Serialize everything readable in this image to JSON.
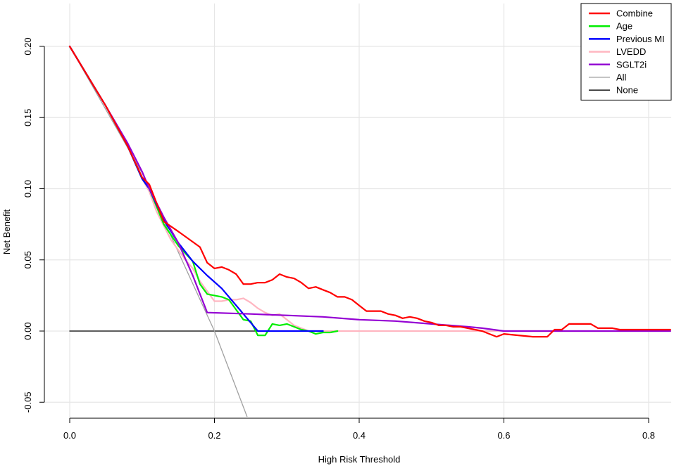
{
  "chart_data": {
    "type": "line",
    "title": "",
    "xlabel": "High Risk Threshold",
    "ylabel": "Net Benefit",
    "xlim": [
      0,
      0.83
    ],
    "ylim": [
      -0.06,
      0.2
    ],
    "x_ticks": [
      0.0,
      0.2,
      0.4,
      0.6,
      0.8
    ],
    "x_tick_labels": [
      "0.0",
      "0.2",
      "0.4",
      "0.6",
      "0.8"
    ],
    "y_ticks": [
      -0.05,
      0.0,
      0.05,
      0.1,
      0.15,
      0.2
    ],
    "y_tick_labels": [
      "-0.05",
      "0.00",
      "0.05",
      "0.10",
      "0.15",
      "0.20"
    ],
    "grid": true,
    "legend_position": "top-right",
    "series": [
      {
        "name": "Combine",
        "color": "#ff0000",
        "x": [
          0,
          0.05,
          0.08,
          0.1,
          0.11,
          0.13,
          0.15,
          0.18,
          0.19,
          0.2,
          0.21,
          0.22,
          0.23,
          0.24,
          0.25,
          0.26,
          0.27,
          0.28,
          0.29,
          0.3,
          0.31,
          0.32,
          0.33,
          0.34,
          0.35,
          0.36,
          0.37,
          0.38,
          0.39,
          0.4,
          0.41,
          0.42,
          0.43,
          0.44,
          0.45,
          0.46,
          0.47,
          0.48,
          0.49,
          0.5,
          0.51,
          0.52,
          0.53,
          0.54,
          0.55,
          0.56,
          0.57,
          0.58,
          0.59,
          0.6,
          0.62,
          0.64,
          0.66,
          0.67,
          0.68,
          0.69,
          0.7,
          0.71,
          0.72,
          0.73,
          0.74,
          0.75,
          0.76,
          0.78,
          0.8,
          0.83
        ],
        "y": [
          0.2,
          0.158,
          0.13,
          0.108,
          0.103,
          0.077,
          0.07,
          0.059,
          0.048,
          0.044,
          0.045,
          0.043,
          0.04,
          0.033,
          0.033,
          0.034,
          0.034,
          0.036,
          0.04,
          0.038,
          0.037,
          0.034,
          0.03,
          0.031,
          0.029,
          0.027,
          0.024,
          0.024,
          0.022,
          0.018,
          0.014,
          0.014,
          0.014,
          0.012,
          0.011,
          0.009,
          0.01,
          0.009,
          0.007,
          0.006,
          0.004,
          0.004,
          0.003,
          0.003,
          0.002,
          0.001,
          0.0,
          -0.002,
          -0.004,
          -0.002,
          -0.003,
          -0.004,
          -0.004,
          0.001,
          0.001,
          0.005,
          0.005,
          0.005,
          0.005,
          0.002,
          0.002,
          0.002,
          0.001,
          0.001,
          0.001,
          0.001
        ]
      },
      {
        "name": "Age",
        "color": "#00ee00",
        "x": [
          0,
          0.05,
          0.08,
          0.1,
          0.11,
          0.13,
          0.15,
          0.17,
          0.18,
          0.19,
          0.2,
          0.21,
          0.22,
          0.23,
          0.24,
          0.25,
          0.26,
          0.27,
          0.28,
          0.29,
          0.3,
          0.31,
          0.32,
          0.33,
          0.34,
          0.35,
          0.36,
          0.37
        ],
        "y": [
          0.2,
          0.158,
          0.13,
          0.107,
          0.1,
          0.075,
          0.06,
          0.049,
          0.033,
          0.026,
          0.025,
          0.024,
          0.022,
          0.015,
          0.008,
          0.007,
          -0.003,
          -0.003,
          0.005,
          0.004,
          0.005,
          0.003,
          0.001,
          0.0,
          -0.002,
          -0.001,
          -0.001,
          0.0
        ]
      },
      {
        "name": "Previous MI",
        "color": "#0000ff",
        "x": [
          0,
          0.05,
          0.08,
          0.1,
          0.11,
          0.13,
          0.15,
          0.17,
          0.19,
          0.21,
          0.23,
          0.25,
          0.26,
          0.3,
          0.35
        ],
        "y": [
          0.2,
          0.158,
          0.13,
          0.107,
          0.1,
          0.078,
          0.062,
          0.049,
          0.039,
          0.03,
          0.018,
          0.006,
          0.0,
          0.0,
          0.0
        ]
      },
      {
        "name": "LVEDD",
        "color": "#ffb6c1",
        "x": [
          0,
          0.05,
          0.08,
          0.1,
          0.11,
          0.12,
          0.14,
          0.16,
          0.17,
          0.18,
          0.19,
          0.2,
          0.21,
          0.22,
          0.23,
          0.24,
          0.25,
          0.26,
          0.27,
          0.28,
          0.29,
          0.3,
          0.31,
          0.32,
          0.33,
          0.34,
          0.35,
          0.36,
          0.4,
          0.5,
          0.6,
          0.7,
          0.83
        ],
        "y": [
          0.2,
          0.158,
          0.13,
          0.107,
          0.098,
          0.084,
          0.064,
          0.05,
          0.044,
          0.035,
          0.028,
          0.021,
          0.021,
          0.022,
          0.022,
          0.023,
          0.02,
          0.016,
          0.013,
          0.011,
          0.012,
          0.008,
          0.004,
          0.002,
          0.0,
          0.0,
          0.0,
          0.0,
          0.0,
          0.0,
          0.0,
          0.0,
          0.0
        ]
      },
      {
        "name": "SGLT2i",
        "color": "#9400d3",
        "x": [
          0,
          0.05,
          0.08,
          0.1,
          0.11,
          0.13,
          0.15,
          0.17,
          0.19,
          0.25,
          0.3,
          0.35,
          0.4,
          0.45,
          0.5,
          0.55,
          0.57,
          0.6,
          0.65,
          0.7,
          0.75,
          0.83
        ],
        "y": [
          0.2,
          0.158,
          0.132,
          0.112,
          0.1,
          0.08,
          0.062,
          0.039,
          0.013,
          0.012,
          0.011,
          0.01,
          0.008,
          0.007,
          0.005,
          0.003,
          0.002,
          0.0,
          0.0,
          0.0,
          0.0,
          0.0
        ]
      },
      {
        "name": "All",
        "color": "#a0a0a0",
        "x": [
          0.0,
          0.1,
          0.2,
          0.245
        ],
        "y": [
          0.2,
          0.111,
          0.0,
          -0.06
        ]
      },
      {
        "name": "None",
        "color": "#000000",
        "x": [
          0.0,
          0.83
        ],
        "y": [
          0.0,
          0.0
        ]
      }
    ]
  }
}
